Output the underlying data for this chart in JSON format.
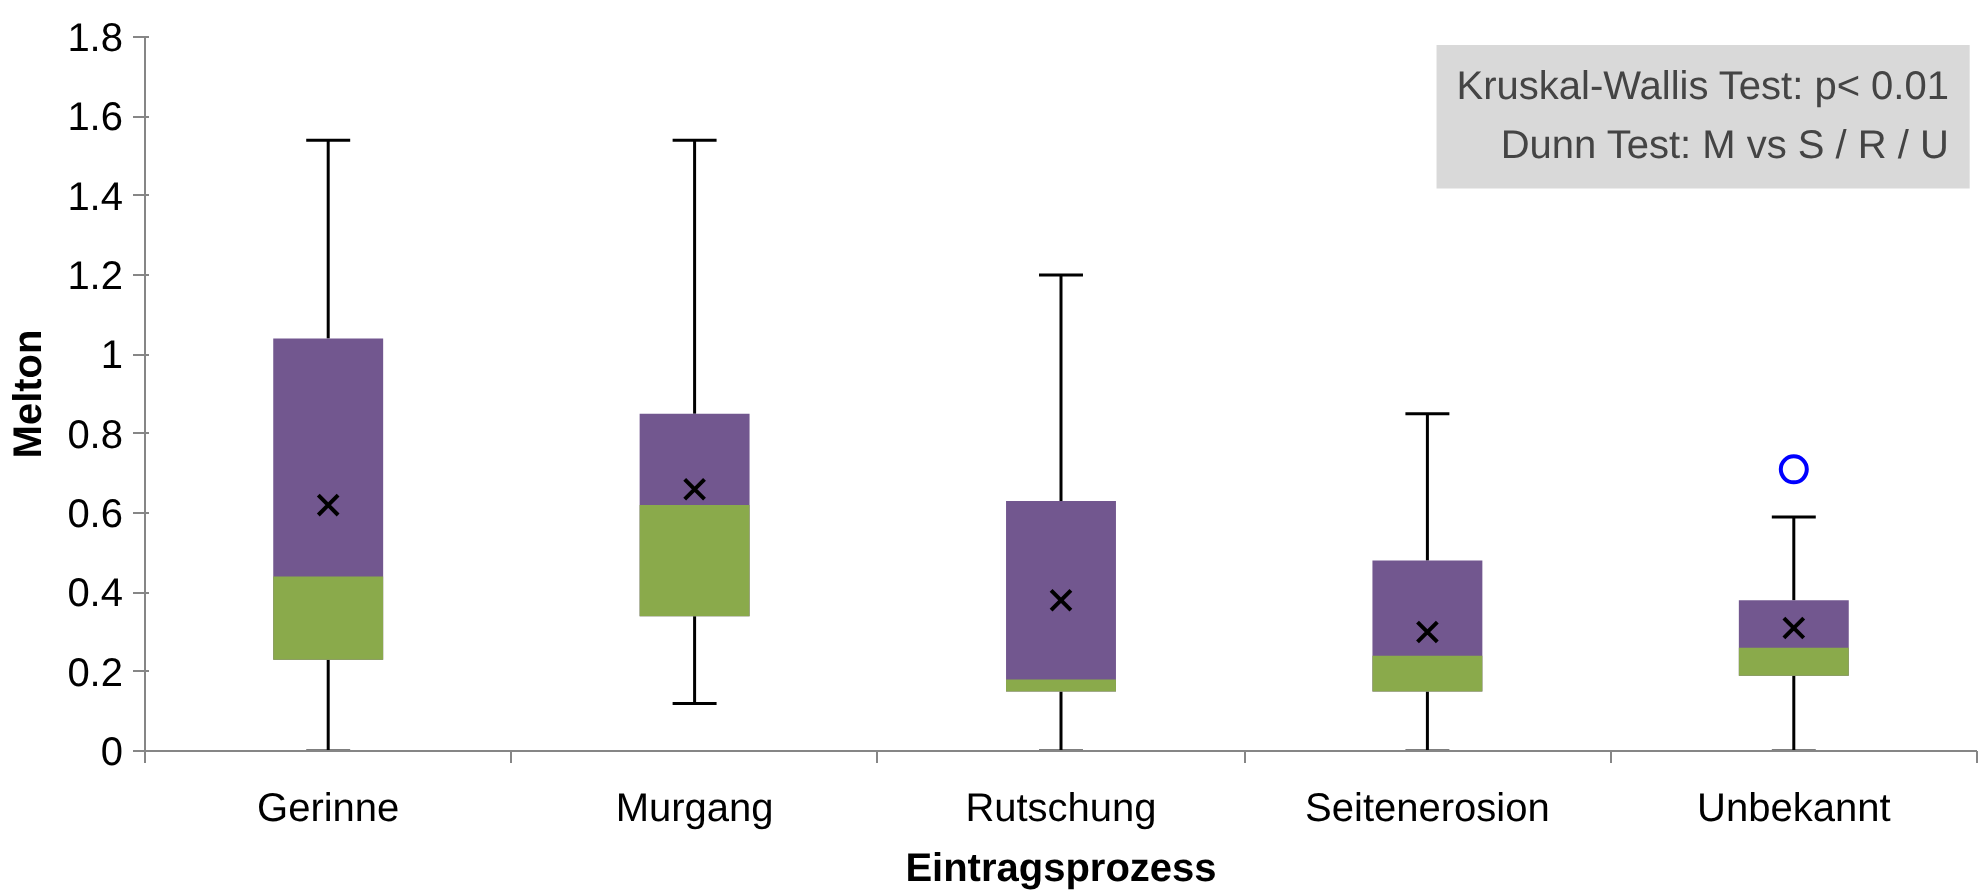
{
  "chart_data": {
    "type": "box",
    "xlabel": "Eintragsprozess",
    "ylabel": "Melton",
    "categories": [
      "Gerinne",
      "Murgang",
      "Rutschung",
      "Seitenerosion",
      "Unbekannt"
    ],
    "color": "#8aaa4b",
    "series": [
      {
        "color": "#72578f",
        "boxes": [
          {
            "low": 0,
            "q1": 0.23,
            "median": 0.44,
            "q3": 1.04,
            "high": 1.54,
            "mean": 0.62
          },
          {
            "low": 0.12,
            "q1": 0.34,
            "median": 0.62,
            "q3": 0.85,
            "high": 1.54,
            "mean": 0.66
          },
          {
            "low": 0,
            "q1": 0.15,
            "median": 0.18,
            "q3": 0.63,
            "high": 1.2,
            "mean": 0.38
          },
          {
            "low": 0,
            "q1": 0.15,
            "median": 0.24,
            "q3": 0.48,
            "high": 0.85,
            "mean": 0.3
          },
          {
            "low": 0,
            "q1": 0.19,
            "median": 0.26,
            "q3": 0.38,
            "high": 0.59,
            "mean": 0.31,
            "outliers": [
              0.71
            ]
          }
        ]
      }
    ],
    "ylim": [
      0,
      1.8
    ],
    "yticks": [
      0,
      {
        "value": 0.2,
        "label": "0.2"
      },
      {
        "value": 0.4,
        "label": "0.4"
      },
      {
        "value": 0.6,
        "label": "0.6"
      },
      {
        "value": 0.8,
        "label": "0.8"
      },
      1,
      {
        "value": 1.2,
        "label": "1.2"
      },
      {
        "value": 1.4,
        "label": "1.4"
      },
      {
        "value": 1.6,
        "label": "1.6"
      },
      {
        "value": 1.8,
        "label": "1.8"
      }
    ],
    "grid": false,
    "annotations": [
      "Kruskal-Wallis Test: p< 0.01",
      "Dunn Test: M vs S / R / U"
    ]
  }
}
